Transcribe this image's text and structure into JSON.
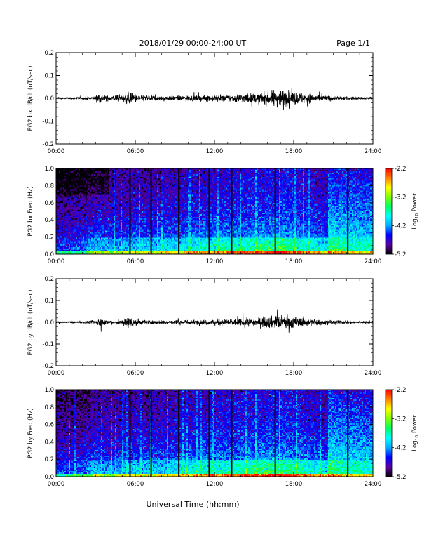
{
  "header": {
    "title": "2018/01/29  00:00-24:00 UT",
    "page": "Page 1/1"
  },
  "footer": {
    "xlabel": "Universal Time (hh:mm)"
  },
  "colorbar": {
    "label": "Log10 Power",
    "label_base": "Log",
    "label_sub": "10",
    "label_rest": " Power",
    "ticks": [
      -2.2,
      -3.2,
      -4.2,
      -5.2
    ],
    "tick_labels": [
      "-2.2",
      "-3.2",
      "-4.2",
      "-5.2"
    ],
    "range": [
      -5.2,
      -2.2
    ],
    "colors": [
      "#000000",
      "#5a00a0",
      "#0000ff",
      "#00aaff",
      "#00ffff",
      "#00ff60",
      "#80ff00",
      "#ffff00",
      "#ff8000",
      "#ff0000"
    ]
  },
  "chart_data": [
    {
      "type": "line",
      "title": "",
      "ylabel": "PG2 bx dB/dt (nT/sec)",
      "xlabel": "",
      "xlim": [
        0,
        24
      ],
      "ylim": [
        -0.2,
        0.2
      ],
      "xticks": [
        0,
        6,
        12,
        18,
        24
      ],
      "xtick_labels": [
        "00:00",
        "06:00",
        "12:00",
        "18:00",
        "24:00"
      ],
      "yticks": [
        0.2,
        0.1,
        0.0,
        -0.1,
        -0.2
      ],
      "ytick_labels": [
        "0.2",
        "0.1",
        "0.0",
        "-0.1",
        "-0.2"
      ],
      "envelope": {
        "hours": [
          0,
          1,
          2,
          3,
          3.2,
          3.5,
          4,
          5,
          5.5,
          5.8,
          6.5,
          7,
          8,
          9,
          10,
          11,
          12,
          13,
          14,
          15,
          16,
          16.5,
          17,
          17.5,
          18,
          19,
          20,
          21,
          22,
          23,
          24
        ],
        "amplitude": [
          0.004,
          0.004,
          0.005,
          0.008,
          0.025,
          0.015,
          0.01,
          0.014,
          0.025,
          0.02,
          0.014,
          0.012,
          0.01,
          0.01,
          0.011,
          0.012,
          0.015,
          0.016,
          0.018,
          0.02,
          0.026,
          0.035,
          0.038,
          0.034,
          0.028,
          0.02,
          0.014,
          0.01,
          0.007,
          0.006,
          0.006
        ]
      }
    },
    {
      "type": "heatmap",
      "title": "",
      "ylabel": "PG2 bx Freq (Hz)",
      "xlabel": "",
      "xlim": [
        0,
        24
      ],
      "ylim": [
        0.0,
        1.0
      ],
      "xticks": [
        0,
        6,
        12,
        18,
        24
      ],
      "xtick_labels": [
        "00:00",
        "06:00",
        "12:00",
        "18:00",
        "24:00"
      ],
      "yticks": [
        1.0,
        0.8,
        0.6,
        0.4,
        0.2,
        0.0
      ],
      "ytick_labels": [
        "1.0",
        "0.8",
        "0.6",
        "0.4",
        "0.2",
        "0.0"
      ],
      "zlim": [
        -5.2,
        -2.2
      ],
      "data_gaps_hours": [
        5.6,
        7.2,
        9.3,
        11.6,
        13.3,
        16.6,
        22.1
      ]
    },
    {
      "type": "line",
      "title": "",
      "ylabel": "PG2 by dB/dt (nT/sec)",
      "xlabel": "",
      "xlim": [
        0,
        24
      ],
      "ylim": [
        -0.2,
        0.2
      ],
      "xticks": [
        0,
        6,
        12,
        18,
        24
      ],
      "xtick_labels": [
        "00:00",
        "06:00",
        "12:00",
        "18:00",
        "24:00"
      ],
      "yticks": [
        0.2,
        0.1,
        0.0,
        -0.1,
        -0.2
      ],
      "ytick_labels": [
        "0.2",
        "0.1",
        "0.0",
        "-0.1",
        "-0.2"
      ],
      "envelope": {
        "hours": [
          0,
          1,
          2,
          3,
          3.3,
          3.6,
          4,
          5,
          5.5,
          5.8,
          6.5,
          7,
          8,
          9,
          10,
          11,
          12,
          13,
          14,
          15,
          16,
          16.5,
          17,
          17.5,
          18,
          19,
          20,
          21,
          22,
          23,
          24
        ],
        "amplitude": [
          0.003,
          0.003,
          0.004,
          0.008,
          0.022,
          0.012,
          0.008,
          0.012,
          0.025,
          0.02,
          0.012,
          0.01,
          0.008,
          0.009,
          0.01,
          0.011,
          0.014,
          0.014,
          0.016,
          0.018,
          0.024,
          0.028,
          0.03,
          0.03,
          0.026,
          0.018,
          0.012,
          0.008,
          0.006,
          0.005,
          0.005
        ]
      }
    },
    {
      "type": "heatmap",
      "title": "",
      "ylabel": "PG2 by Freq (Hz)",
      "xlabel": "",
      "xlim": [
        0,
        24
      ],
      "ylim": [
        0.0,
        1.0
      ],
      "xticks": [
        0,
        6,
        12,
        18,
        24
      ],
      "xtick_labels": [
        "00:00",
        "06:00",
        "12:00",
        "18:00",
        "24:00"
      ],
      "yticks": [
        1.0,
        0.8,
        0.6,
        0.4,
        0.2,
        0.0
      ],
      "ytick_labels": [
        "1.0",
        "0.8",
        "0.6",
        "0.4",
        "0.2",
        "0.0"
      ],
      "zlim": [
        -5.2,
        -2.2
      ],
      "data_gaps_hours": [
        5.6,
        7.2,
        9.3,
        11.6,
        13.3,
        16.6,
        22.1
      ]
    }
  ]
}
